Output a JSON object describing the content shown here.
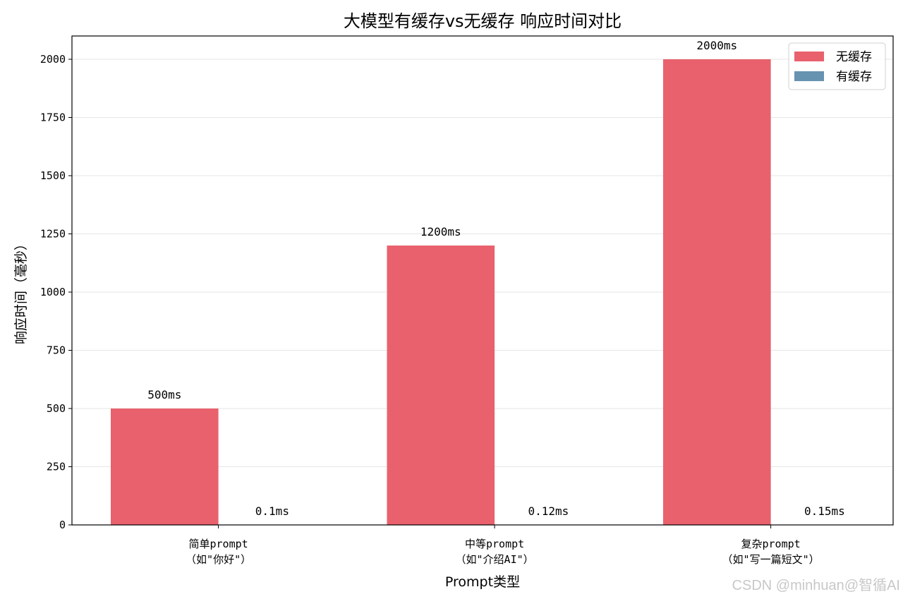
{
  "chart_data": {
    "type": "bar",
    "title": "大模型有缓存vs无缓存 响应时间对比",
    "xlabel": "Prompt类型",
    "ylabel": "响应时间（毫秒）",
    "ylim": [
      0,
      2100
    ],
    "yticks": [
      0,
      250,
      500,
      750,
      1000,
      1250,
      1500,
      1750,
      2000
    ],
    "grid": "y",
    "legend_position": "top-right",
    "categories": [
      [
        "简单prompt",
        "（如\"你好\"）"
      ],
      [
        "中等prompt",
        "（如\"介绍AI\"）"
      ],
      [
        "复杂prompt",
        "（如\"写一篇短文\"）"
      ]
    ],
    "series": [
      {
        "name": "无缓存",
        "color": "#e8616c",
        "values": [
          500,
          1200,
          2000
        ],
        "labels": [
          "500ms",
          "1200ms",
          "2000ms"
        ]
      },
      {
        "name": "有缓存",
        "color": "#6693b0",
        "values": [
          0.1,
          0.12,
          0.15
        ],
        "labels": [
          "0.1ms",
          "0.12ms",
          "0.15ms"
        ]
      }
    ]
  },
  "watermark": "CSDN @minhuan@智循AI"
}
